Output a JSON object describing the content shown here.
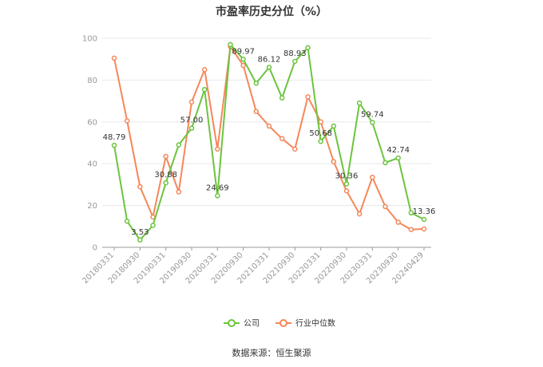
{
  "chart_data": {
    "type": "line",
    "title": "市盈率历史分位（%）",
    "x": [
      "20180331",
      "20180630",
      "20180930",
      "20181231",
      "20190331",
      "20190630",
      "20190930",
      "20191231",
      "20200331",
      "20200630",
      "20200930",
      "20201231",
      "20210331",
      "20210630",
      "20210930",
      "20211231",
      "20220331",
      "20220630",
      "20220930",
      "20221231",
      "20230331",
      "20230630",
      "20230930",
      "20231231",
      "20240429"
    ],
    "xtick_labels": [
      "20180331",
      "20180930",
      "20190331",
      "20190930",
      "20200331",
      "20200930",
      "20210331",
      "20210930",
      "20220331",
      "20220930",
      "20230331",
      "20230930",
      "20240429"
    ],
    "ylim": [
      0,
      100
    ],
    "yticks": [
      "0",
      "20",
      "40",
      "60",
      "80",
      "100"
    ],
    "grid": true,
    "legend_position": "bottom",
    "series": [
      {
        "name": "公司",
        "color": "#6cc43e",
        "values": [
          48.79,
          12.5,
          3.53,
          10.5,
          30.88,
          49.0,
          57.0,
          75.5,
          24.69,
          97.0,
          89.97,
          78.5,
          86.12,
          71.5,
          88.93,
          95.5,
          50.68,
          58.0,
          30.36,
          69.0,
          59.74,
          40.5,
          42.74,
          16.5,
          13.36
        ],
        "labels": [
          "48.79",
          "",
          "3.53",
          "",
          "30.88",
          "",
          "57.00",
          "",
          "24.69",
          "",
          "89.97",
          "",
          "86.12",
          "",
          "88.93",
          "",
          "50.68",
          "",
          "30.36",
          "",
          "59.74",
          "",
          "42.74",
          "",
          "13.36"
        ]
      },
      {
        "name": "行业中位数",
        "color": "#f5875a",
        "values": [
          90.5,
          60.5,
          29.0,
          14.5,
          43.5,
          26.5,
          69.5,
          85.0,
          47.0,
          96.0,
          87.0,
          65.0,
          58.0,
          52.0,
          47.0,
          72.0,
          60.0,
          41.0,
          27.0,
          16.0,
          33.5,
          19.5,
          12.0,
          8.5,
          8.8
        ],
        "labels": []
      }
    ]
  },
  "source_text": "数据来源：恒生聚源"
}
